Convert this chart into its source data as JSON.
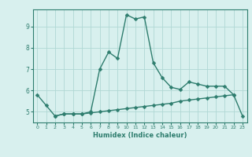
{
  "xlabel": "Humidex (Indice chaleur)",
  "ylabel": "",
  "x_values": [
    0,
    1,
    2,
    3,
    4,
    5,
    6,
    7,
    8,
    9,
    10,
    11,
    12,
    13,
    14,
    15,
    16,
    17,
    18,
    19,
    20,
    21,
    22,
    23
  ],
  "line1_y": [
    5.8,
    5.3,
    4.8,
    4.9,
    4.9,
    4.9,
    5.0,
    7.0,
    7.8,
    7.5,
    9.55,
    9.35,
    9.45,
    7.3,
    6.6,
    6.15,
    6.05,
    6.4,
    6.3,
    6.2,
    6.2,
    6.2,
    5.8,
    null
  ],
  "line2_y": [
    null,
    null,
    4.8,
    4.9,
    4.9,
    4.9,
    4.95,
    5.0,
    5.05,
    5.1,
    5.15,
    5.2,
    5.25,
    5.3,
    5.35,
    5.4,
    5.5,
    5.55,
    5.6,
    5.65,
    5.7,
    5.75,
    5.8,
    4.8
  ],
  "line_color": "#2e7d6e",
  "bg_color": "#d8f0ee",
  "grid_color": "#b0d8d4",
  "ylim": [
    4.5,
    9.8
  ],
  "xlim": [
    -0.5,
    23.5
  ],
  "yticks": [
    5,
    6,
    7,
    8,
    9
  ],
  "xticks": [
    0,
    1,
    2,
    3,
    4,
    5,
    6,
    7,
    8,
    9,
    10,
    11,
    12,
    13,
    14,
    15,
    16,
    17,
    18,
    19,
    20,
    21,
    22,
    23
  ]
}
